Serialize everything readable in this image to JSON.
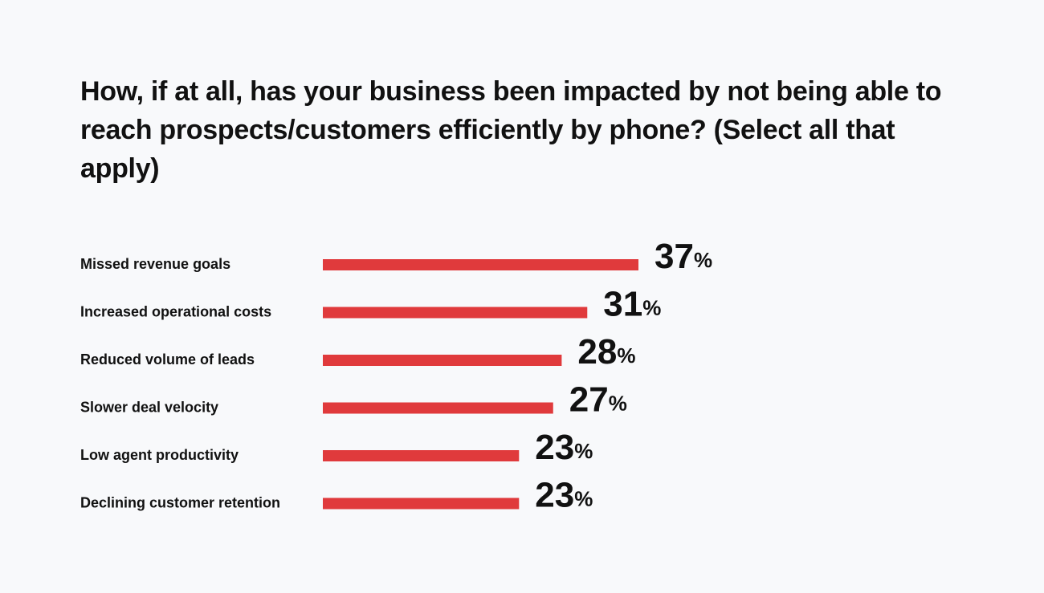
{
  "chart_data": {
    "type": "bar",
    "orientation": "horizontal",
    "title": "How, if at all, has your business been impacted by not being able to reach prospects/customers efficiently by phone? (Select all that apply)",
    "categories": [
      "Missed revenue goals",
      "Increased operational costs",
      "Reduced volume of leads",
      "Slower deal velocity",
      "Low agent productivity",
      "Declining customer retention"
    ],
    "values": [
      37,
      31,
      28,
      27,
      23,
      23
    ],
    "value_labels": [
      "37%",
      "31%",
      "28%",
      "27%",
      "23%",
      "23%"
    ],
    "color": "#e03a3c"
  }
}
